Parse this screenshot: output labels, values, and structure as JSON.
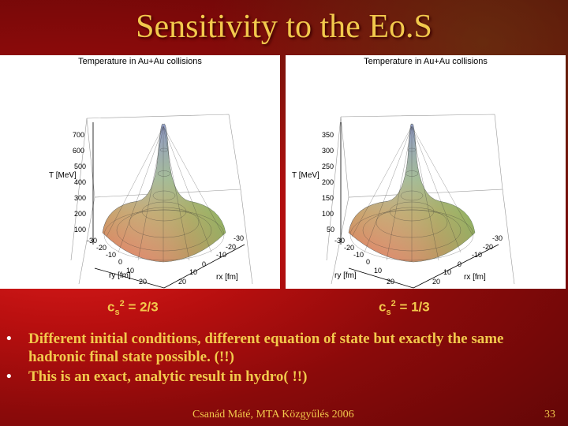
{
  "slide": {
    "title": "Sensitivity to the Eo.S",
    "footer": "Csanád Máté, MTA Közgyűlés 2006",
    "page_number": "33"
  },
  "plots": [
    {
      "title": "Temperature in Au+Au collisions",
      "z_label": "T [MeV]",
      "z_ticks": [
        "700",
        "600",
        "500",
        "400",
        "300",
        "200",
        "100"
      ],
      "y_label": "ry [fm]",
      "x_label": "rx [fm]",
      "y_ticks": [
        "-30",
        "-20",
        "-10",
        "0",
        "10",
        "20"
      ],
      "x_ticks": [
        "-30",
        "-20",
        "-10",
        "0",
        "10",
        "20"
      ],
      "caption_base": "c",
      "caption_sup": "2",
      "caption_sub": "s",
      "caption_rest": " = 2/3"
    },
    {
      "title": "Temperature in Au+Au collisions",
      "z_label": "T [MeV]",
      "z_ticks": [
        "350",
        "300",
        "250",
        "200",
        "150",
        "100",
        "50"
      ],
      "y_label": "ry [fm]",
      "x_label": "rx [fm]",
      "y_ticks": [
        "-30",
        "-20",
        "-10",
        "0",
        "10",
        "20"
      ],
      "x_ticks": [
        "-30",
        "-20",
        "-10",
        "0",
        "10",
        "20"
      ],
      "caption_base": "c",
      "caption_sup": "2",
      "caption_sub": "s",
      "caption_rest": " = 1/3"
    }
  ],
  "bullets": [
    "Different initial conditions, different equation of state but exactly the same hadronic final state possible. (!!)",
    "This is an exact, analytic result in hydro( !!)"
  ],
  "bullet_glyph": "•"
}
